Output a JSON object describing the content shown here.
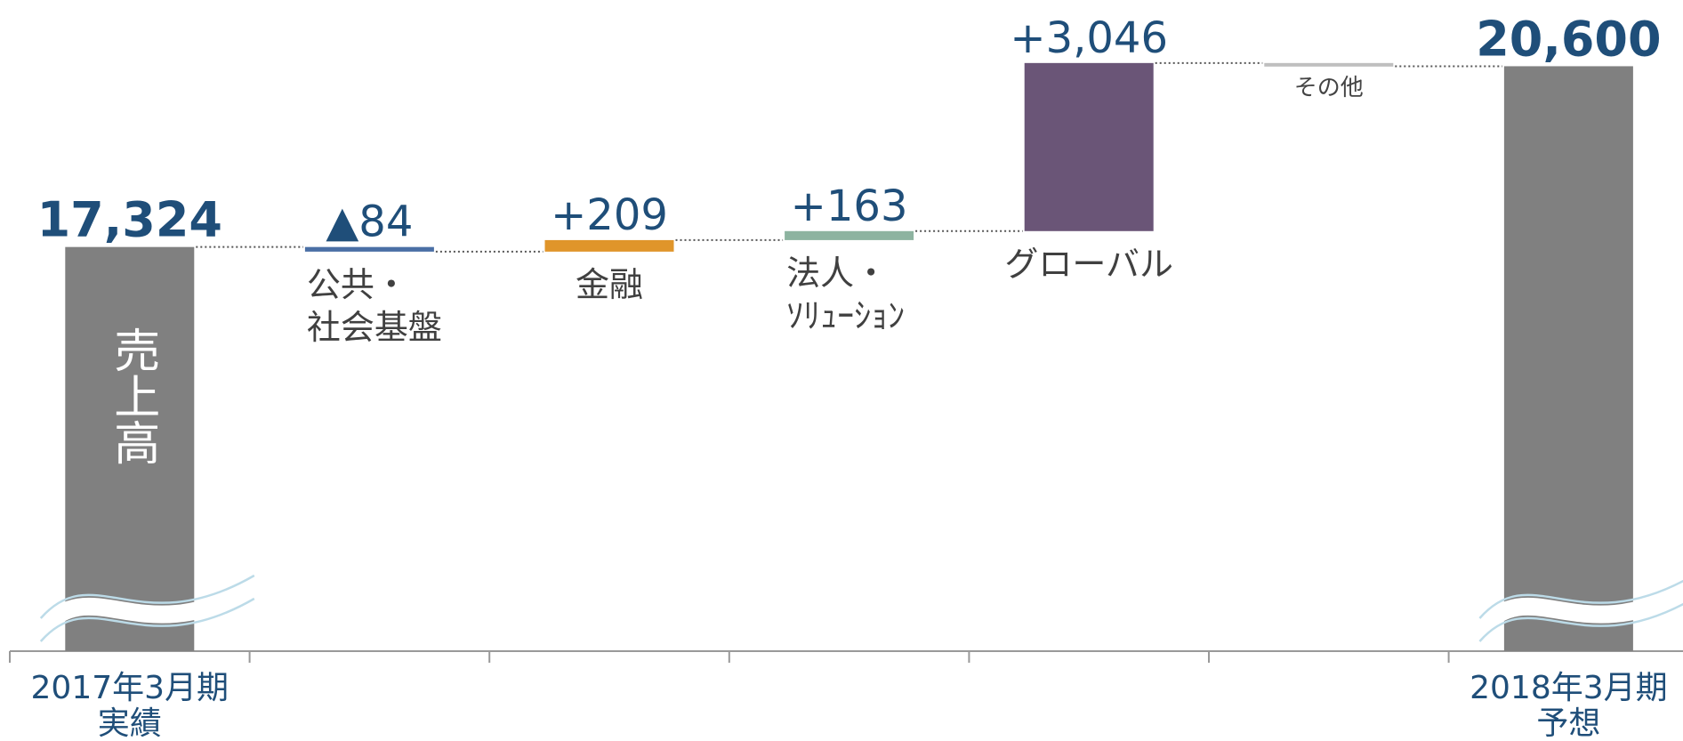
{
  "chart_data": {
    "type": "waterfall",
    "annotation": "売上高",
    "categories": [
      "2017年3月期\n実績",
      "公共・\n社会基盤",
      "金融",
      "法人・\nｿﾘｭｰｼｮﾝ",
      "グローバル",
      "その他",
      "2018年3月期\n予想"
    ],
    "values": [
      17324,
      -84,
      209,
      163,
      3046,
      -58,
      20600
    ],
    "value_labels": [
      "17,324",
      "▲84",
      "+209",
      "+163",
      "+3,046",
      null,
      "20,600"
    ],
    "colors": [
      "#808080",
      "#4a6fa5",
      "#e0952a",
      "#8db3a0",
      "#6a5577",
      "#bfbfbf",
      "#808080"
    ],
    "ylim": [
      10000,
      21800
    ]
  }
}
